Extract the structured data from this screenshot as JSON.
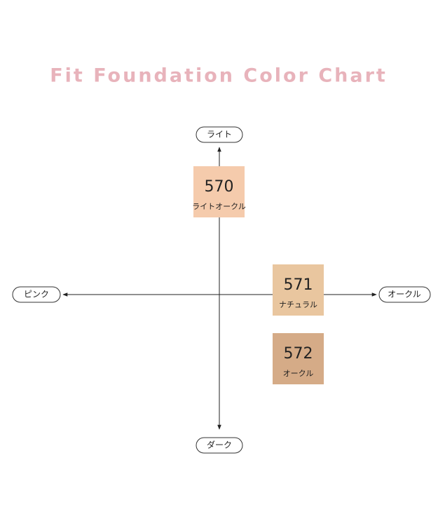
{
  "header": {
    "title": "Fit Foundation Color Chart"
  },
  "axes": {
    "top": "ライト",
    "bottom": "ダーク",
    "left": "ピンク",
    "right": "オークル"
  },
  "swatches": [
    {
      "code": "570",
      "name": "ライトオークル",
      "color": "#f5cbac"
    },
    {
      "code": "571",
      "name": "ナチュラル",
      "color": "#e9c69f"
    },
    {
      "code": "572",
      "name": "オークル",
      "color": "#d5ab87"
    }
  ]
}
